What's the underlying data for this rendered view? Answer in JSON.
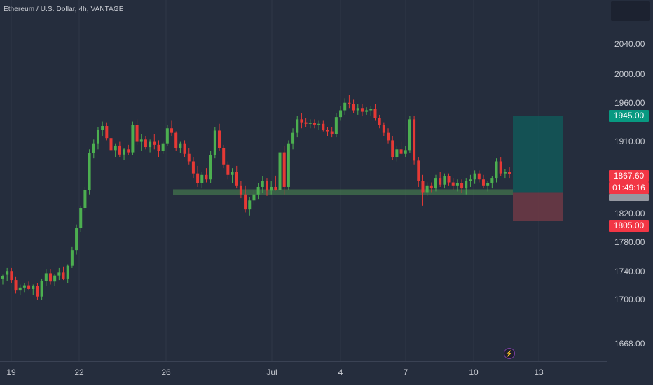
{
  "header": {
    "symbol_title": "Ethereum / U.S. Dollar, 4h, VANTAGE"
  },
  "price_axis": {
    "labels": [
      "2040.00",
      "2000.00",
      "1960.00",
      "1910.00",
      "1820.00",
      "1780.00",
      "1740.00",
      "1700.00",
      "1668.00"
    ],
    "target_tag": "1945.00",
    "last_price_tag": "1867.60",
    "countdown_tag": "01:49:16",
    "stop_tag": "1805.00"
  },
  "time_axis": {
    "labels": [
      "19",
      "22",
      "26",
      "Jul",
      "4",
      "7",
      "10",
      "13"
    ]
  },
  "colors": {
    "bull": "#4caf50",
    "bear": "#e53935",
    "target": "#089981",
    "stop": "#f23645",
    "support": "#4d8c52"
  },
  "chart_data": {
    "type": "candlestick",
    "title": "Ethereum / U.S. Dollar, 4h, VANTAGE",
    "ylim": [
      1650,
      2070
    ],
    "support_level": 1843,
    "long_position": {
      "target": 1945,
      "entry": 1843,
      "stop": 1805
    },
    "candles": [
      [
        1728,
        1733,
        1720,
        1731
      ],
      [
        1733,
        1742,
        1725,
        1738
      ],
      [
        1738,
        1742,
        1722,
        1726
      ],
      [
        1726,
        1730,
        1708,
        1712
      ],
      [
        1712,
        1720,
        1706,
        1716
      ],
      [
        1716,
        1722,
        1710,
        1719
      ],
      [
        1719,
        1724,
        1712,
        1714
      ],
      [
        1714,
        1720,
        1706,
        1718
      ],
      [
        1718,
        1722,
        1700,
        1704
      ],
      [
        1704,
        1728,
        1700,
        1725
      ],
      [
        1725,
        1740,
        1718,
        1735
      ],
      [
        1735,
        1740,
        1720,
        1724
      ],
      [
        1724,
        1734,
        1718,
        1732
      ],
      [
        1732,
        1742,
        1726,
        1736
      ],
      [
        1736,
        1744,
        1726,
        1728
      ],
      [
        1728,
        1747,
        1722,
        1745
      ],
      [
        1745,
        1770,
        1742,
        1766
      ],
      [
        1766,
        1800,
        1760,
        1795
      ],
      [
        1795,
        1825,
        1790,
        1822
      ],
      [
        1822,
        1850,
        1818,
        1846
      ],
      [
        1846,
        1900,
        1840,
        1895
      ],
      [
        1895,
        1913,
        1888,
        1908
      ],
      [
        1908,
        1930,
        1900,
        1926
      ],
      [
        1926,
        1937,
        1918,
        1931
      ],
      [
        1931,
        1936,
        1912,
        1915
      ],
      [
        1915,
        1918,
        1895,
        1899
      ],
      [
        1899,
        1908,
        1890,
        1905
      ],
      [
        1905,
        1910,
        1890,
        1893
      ],
      [
        1893,
        1902,
        1886,
        1900
      ],
      [
        1900,
        1906,
        1892,
        1896
      ],
      [
        1896,
        1937,
        1892,
        1932
      ],
      [
        1932,
        1940,
        1906,
        1910
      ],
      [
        1910,
        1920,
        1898,
        1913
      ],
      [
        1913,
        1918,
        1900,
        1903
      ],
      [
        1903,
        1913,
        1896,
        1910
      ],
      [
        1910,
        1920,
        1900,
        1906
      ],
      [
        1906,
        1912,
        1890,
        1898
      ],
      [
        1898,
        1910,
        1894,
        1908
      ],
      [
        1908,
        1932,
        1904,
        1928
      ],
      [
        1928,
        1938,
        1918,
        1922
      ],
      [
        1922,
        1924,
        1898,
        1902
      ],
      [
        1902,
        1910,
        1895,
        1908
      ],
      [
        1908,
        1912,
        1890,
        1894
      ],
      [
        1894,
        1902,
        1880,
        1884
      ],
      [
        1884,
        1890,
        1862,
        1868
      ],
      [
        1868,
        1878,
        1850,
        1855
      ],
      [
        1855,
        1870,
        1848,
        1866
      ],
      [
        1866,
        1875,
        1856,
        1860
      ],
      [
        1860,
        1898,
        1855,
        1892
      ],
      [
        1892,
        1930,
        1888,
        1925
      ],
      [
        1925,
        1934,
        1898,
        1902
      ],
      [
        1902,
        1906,
        1875,
        1880
      ],
      [
        1880,
        1884,
        1860,
        1866
      ],
      [
        1866,
        1875,
        1855,
        1870
      ],
      [
        1870,
        1878,
        1848,
        1852
      ],
      [
        1852,
        1858,
        1835,
        1840
      ],
      [
        1840,
        1852,
        1816,
        1820
      ],
      [
        1820,
        1836,
        1812,
        1832
      ],
      [
        1832,
        1845,
        1826,
        1840
      ],
      [
        1840,
        1855,
        1834,
        1850
      ],
      [
        1850,
        1864,
        1842,
        1858
      ],
      [
        1858,
        1862,
        1838,
        1845
      ],
      [
        1845,
        1858,
        1840,
        1850
      ],
      [
        1850,
        1865,
        1845,
        1846
      ],
      [
        1846,
        1900,
        1842,
        1896
      ],
      [
        1896,
        1905,
        1840,
        1850
      ],
      [
        1850,
        1912,
        1846,
        1908
      ],
      [
        1908,
        1928,
        1900,
        1922
      ],
      [
        1922,
        1945,
        1916,
        1940
      ],
      [
        1940,
        1948,
        1928,
        1936
      ],
      [
        1936,
        1942,
        1930,
        1934
      ],
      [
        1934,
        1940,
        1928,
        1935
      ],
      [
        1935,
        1940,
        1928,
        1933
      ],
      [
        1933,
        1938,
        1926,
        1934
      ],
      [
        1934,
        1938,
        1924,
        1926
      ],
      [
        1926,
        1930,
        1918,
        1924
      ],
      [
        1924,
        1930,
        1916,
        1920
      ],
      [
        1920,
        1948,
        1916,
        1943
      ],
      [
        1943,
        1958,
        1938,
        1952
      ],
      [
        1952,
        1968,
        1946,
        1962
      ],
      [
        1962,
        1972,
        1955,
        1960
      ],
      [
        1960,
        1966,
        1948,
        1952
      ],
      [
        1952,
        1960,
        1946,
        1955
      ],
      [
        1955,
        1960,
        1944,
        1950
      ],
      [
        1950,
        1956,
        1946,
        1952
      ],
      [
        1952,
        1958,
        1945,
        1954
      ],
      [
        1954,
        1960,
        1938,
        1942
      ],
      [
        1942,
        1946,
        1928,
        1932
      ],
      [
        1932,
        1936,
        1918,
        1922
      ],
      [
        1922,
        1928,
        1908,
        1912
      ],
      [
        1912,
        1918,
        1886,
        1890
      ],
      [
        1890,
        1905,
        1884,
        1900
      ],
      [
        1900,
        1910,
        1892,
        1894
      ],
      [
        1894,
        1904,
        1890,
        1899
      ],
      [
        1899,
        1945,
        1895,
        1940
      ],
      [
        1940,
        1945,
        1880,
        1885
      ],
      [
        1885,
        1890,
        1850,
        1858
      ],
      [
        1858,
        1866,
        1825,
        1843
      ],
      [
        1843,
        1856,
        1838,
        1852
      ],
      [
        1852,
        1856,
        1843,
        1848
      ],
      [
        1848,
        1866,
        1844,
        1862
      ],
      [
        1862,
        1870,
        1850,
        1853
      ],
      [
        1853,
        1868,
        1848,
        1864
      ],
      [
        1864,
        1868,
        1852,
        1856
      ],
      [
        1856,
        1862,
        1846,
        1852
      ],
      [
        1852,
        1860,
        1844,
        1855
      ],
      [
        1855,
        1860,
        1842,
        1848
      ],
      [
        1848,
        1862,
        1840,
        1858
      ],
      [
        1858,
        1866,
        1850,
        1860
      ],
      [
        1860,
        1872,
        1854,
        1868
      ],
      [
        1868,
        1872,
        1856,
        1860
      ],
      [
        1860,
        1866,
        1848,
        1852
      ],
      [
        1852,
        1858,
        1844,
        1855
      ],
      [
        1855,
        1864,
        1848,
        1862
      ],
      [
        1862,
        1888,
        1856,
        1884
      ],
      [
        1884,
        1890,
        1864,
        1868
      ],
      [
        1868,
        1874,
        1862,
        1870
      ],
      [
        1870,
        1876,
        1862,
        1867
      ]
    ]
  }
}
